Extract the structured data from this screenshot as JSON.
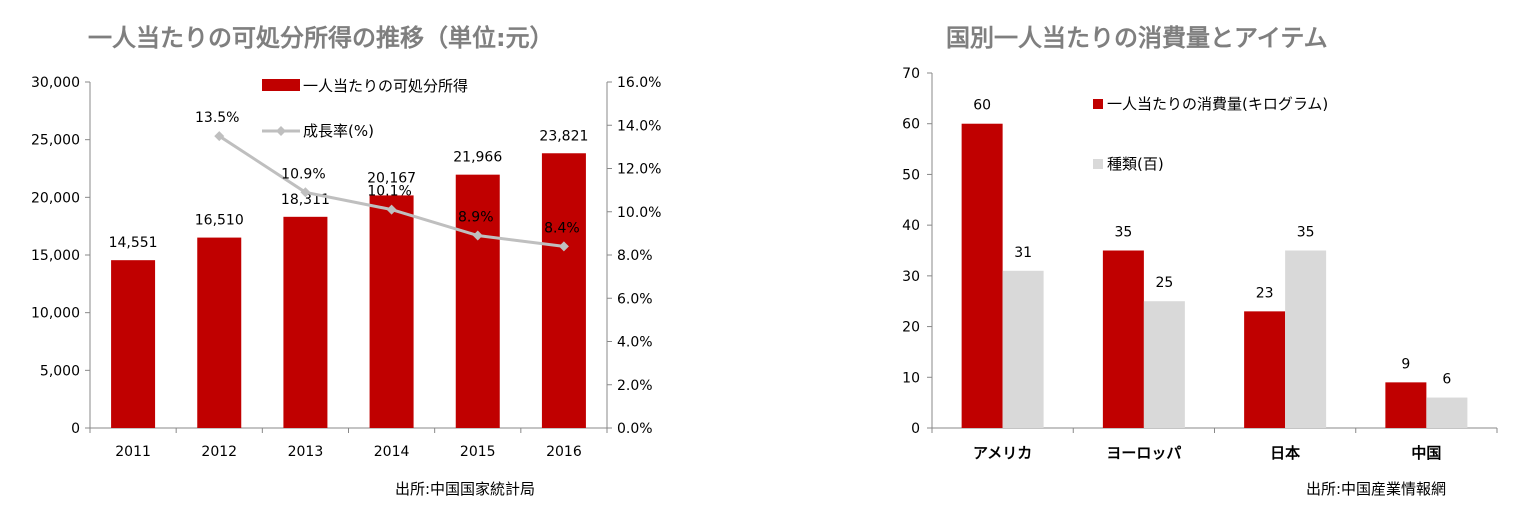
{
  "chart_data": [
    {
      "type": "bar",
      "title": "一人当たりの可処分所得の推移（単位:元）",
      "source": "出所:中国国家統計局",
      "categories": [
        "2011",
        "2012",
        "2013",
        "2014",
        "2015",
        "2016"
      ],
      "series": [
        {
          "name": "一人当たりの可処分所得",
          "type": "bar",
          "axis": "left",
          "color": "#c00000",
          "values": [
            14551,
            16510,
            18311,
            20167,
            21966,
            23821
          ],
          "labels": [
            "14,551",
            "16,510",
            "18,311",
            "20,167",
            "21,966",
            "23,821"
          ]
        },
        {
          "name": "成長率(%)",
          "type": "line",
          "axis": "right",
          "color": "#bfbfbf",
          "values": [
            null,
            13.5,
            10.9,
            10.1,
            8.9,
            8.4
          ],
          "labels": [
            "",
            "13.5%",
            "10.9%",
            "10.1%",
            "8.9%",
            "8.4%"
          ]
        }
      ],
      "ylim": [
        0,
        30000
      ],
      "yticks": [
        "0",
        "5,000",
        "10,000",
        "15,000",
        "20,000",
        "25,000",
        "30,000"
      ],
      "y2lim": [
        0,
        16
      ],
      "y2ticks": [
        "0.0%",
        "2.0%",
        "4.0%",
        "6.0%",
        "8.0%",
        "10.0%",
        "12.0%",
        "14.0%",
        "16.0%"
      ],
      "grid": false,
      "legend": "top-center"
    },
    {
      "type": "bar",
      "title": "国別一人当たりの消費量とアイテム",
      "source": "出所:中国産業情報網",
      "categories": [
        "アメリカ",
        "ヨーロッパ",
        "日本",
        "中国"
      ],
      "series": [
        {
          "name": "一人当たりの消費量(キログラム)",
          "color": "#c00000",
          "values": [
            60,
            35,
            23,
            9
          ]
        },
        {
          "name": "種類(百)",
          "color": "#d9d9d9",
          "values": [
            31,
            25,
            35,
            6
          ]
        }
      ],
      "ylim": [
        0,
        70
      ],
      "yticks": [
        "0",
        "10",
        "20",
        "30",
        "40",
        "50",
        "60",
        "70"
      ],
      "grid": false,
      "legend": "top-right"
    }
  ]
}
